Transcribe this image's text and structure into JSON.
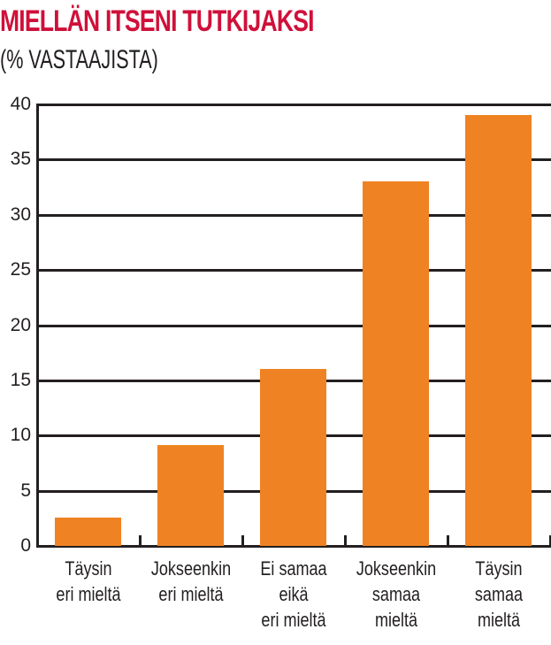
{
  "chart_data": {
    "type": "bar",
    "title": "MIELLÄN ITSENI TUTKIJAKSI",
    "subtitle": "(% VASTAAJISTA)",
    "xlabel": "",
    "ylabel": "% vastaajista",
    "ylim": [
      0,
      40
    ],
    "yticks": [
      "0",
      "5",
      "10",
      "15",
      "20",
      "25",
      "30",
      "35",
      "40"
    ],
    "grid": true,
    "legend": null,
    "categories": [
      "Täysin eri mieltä",
      "Jokseenkin eri mieltä",
      "Ei samaa eikä eri mieltä",
      "Jokseenkin samaa mieltä",
      "Täysin samaa mieltä"
    ],
    "category_lines": [
      [
        "Täysin",
        "eri mieltä"
      ],
      [
        "Jokseenkin",
        "eri mieltä"
      ],
      [
        "Ei samaa",
        "eikä",
        "eri mieltä"
      ],
      [
        "Jokseenkin",
        "samaa",
        "mieltä"
      ],
      [
        "Täysin",
        "samaa",
        "mieltä"
      ]
    ],
    "values": [
      2.6,
      9.1,
      16,
      33,
      39
    ],
    "colors": {
      "bar": "#ef8222",
      "title": "#d0103a",
      "axis": "#231f20"
    }
  }
}
